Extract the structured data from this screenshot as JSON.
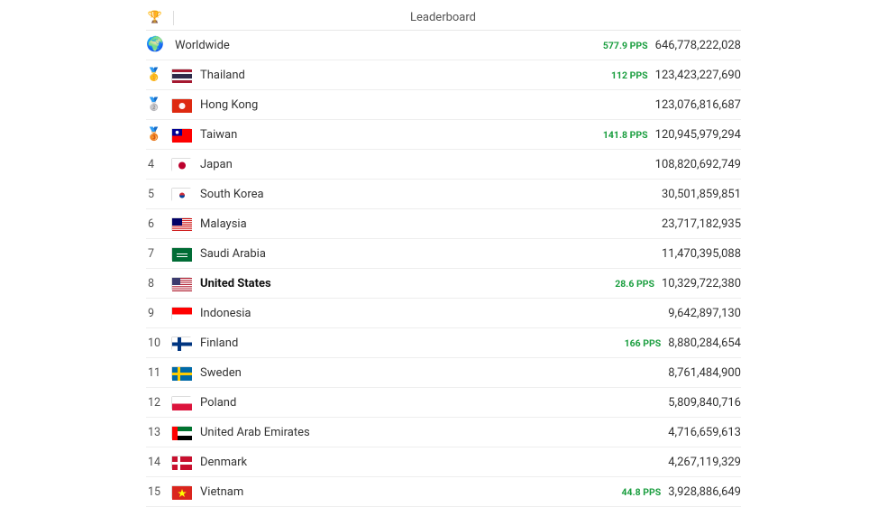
{
  "header": {
    "trophy_icon": "🏆",
    "title": "Leaderboard"
  },
  "worldwide": {
    "globe_icon": "🌍",
    "name": "Worldwide",
    "pps": "577.9 PPS",
    "score": "646,778,222,028"
  },
  "rows": [
    {
      "rank": "🥇",
      "rank_is_medal": true,
      "flag_svg": "thailand",
      "name": "Thailand",
      "pps": "112 PPS",
      "score": "123,423,227,690",
      "bold": false
    },
    {
      "rank": "🥈",
      "rank_is_medal": true,
      "flag_svg": "hongkong",
      "name": "Hong Kong",
      "pps": "",
      "score": "123,076,816,687",
      "bold": false
    },
    {
      "rank": "🥉",
      "rank_is_medal": true,
      "flag_svg": "taiwan",
      "name": "Taiwan",
      "pps": "141.8 PPS",
      "score": "120,945,979,294",
      "bold": false
    },
    {
      "rank": "4",
      "rank_is_medal": false,
      "flag_svg": "japan",
      "name": "Japan",
      "pps": "",
      "score": "108,820,692,749",
      "bold": false
    },
    {
      "rank": "5",
      "rank_is_medal": false,
      "flag_svg": "southkorea",
      "name": "South Korea",
      "pps": "",
      "score": "30,501,859,851",
      "bold": false
    },
    {
      "rank": "6",
      "rank_is_medal": false,
      "flag_svg": "malaysia",
      "name": "Malaysia",
      "pps": "",
      "score": "23,717,182,935",
      "bold": false
    },
    {
      "rank": "7",
      "rank_is_medal": false,
      "flag_svg": "saudi",
      "name": "Saudi Arabia",
      "pps": "",
      "score": "11,470,395,088",
      "bold": false
    },
    {
      "rank": "8",
      "rank_is_medal": false,
      "flag_svg": "usa",
      "name": "United States",
      "pps": "28.6 PPS",
      "score": "10,329,722,380",
      "bold": true
    },
    {
      "rank": "9",
      "rank_is_medal": false,
      "flag_svg": "indonesia",
      "name": "Indonesia",
      "pps": "",
      "score": "9,642,897,130",
      "bold": false
    },
    {
      "rank": "10",
      "rank_is_medal": false,
      "flag_svg": "finland",
      "name": "Finland",
      "pps": "166 PPS",
      "score": "8,880,284,654",
      "bold": false
    },
    {
      "rank": "11",
      "rank_is_medal": false,
      "flag_svg": "sweden",
      "name": "Sweden",
      "pps": "",
      "score": "8,761,484,900",
      "bold": false
    },
    {
      "rank": "12",
      "rank_is_medal": false,
      "flag_svg": "poland",
      "name": "Poland",
      "pps": "",
      "score": "5,809,840,716",
      "bold": false
    },
    {
      "rank": "13",
      "rank_is_medal": false,
      "flag_svg": "uae",
      "name": "United Arab Emirates",
      "pps": "",
      "score": "4,716,659,613",
      "bold": false
    },
    {
      "rank": "14",
      "rank_is_medal": false,
      "flag_svg": "denmark",
      "name": "Denmark",
      "pps": "",
      "score": "4,267,119,329",
      "bold": false
    },
    {
      "rank": "15",
      "rank_is_medal": false,
      "flag_svg": "vietnam",
      "name": "Vietnam",
      "pps": "44.8 PPS",
      "score": "3,928,886,649",
      "bold": false
    }
  ],
  "flag_colors": {
    "thailand": [
      "#a51931",
      "#f4f5f8",
      "#2d2a4a",
      "#f4f5f8",
      "#a51931"
    ],
    "hongkong": "#de2910",
    "taiwan": {
      "bg": "#fe0000",
      "canton": "#000095"
    },
    "japan": {
      "bg": "#ffffff",
      "circle": "#bc002d"
    },
    "southkorea": "#ffffff",
    "malaysia": {
      "stripes": [
        "#cc0001",
        "#ffffff"
      ],
      "canton": "#010066"
    },
    "saudi": "#006c35",
    "usa": {
      "stripes": [
        "#b22234",
        "#ffffff"
      ],
      "canton": "#3c3b6e"
    },
    "indonesia": [
      "#ff0000",
      "#ffffff"
    ],
    "finland": {
      "bg": "#ffffff",
      "cross": "#003580"
    },
    "sweden": {
      "bg": "#006aa7",
      "cross": "#fecc00"
    },
    "poland": [
      "#ffffff",
      "#dc143c"
    ],
    "uae": {
      "left": "#ff0000",
      "stripes": [
        "#00732f",
        "#ffffff",
        "#000000"
      ]
    },
    "denmark": {
      "bg": "#c8102e",
      "cross": "#ffffff"
    },
    "vietnam": {
      "bg": "#da251d",
      "star": "#ffff00"
    }
  }
}
